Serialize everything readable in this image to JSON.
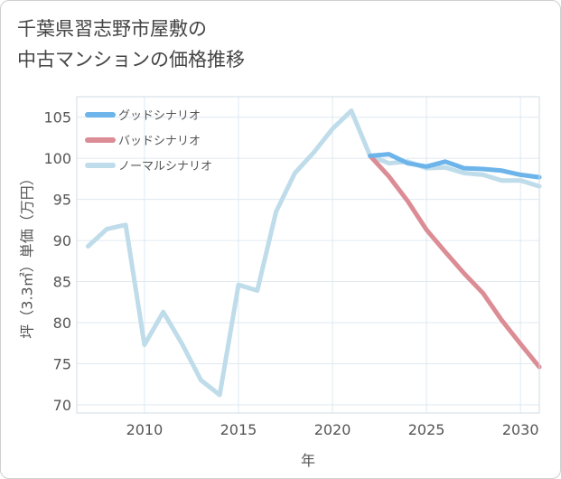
{
  "title_lines": [
    "千葉県習志野市屋敷の",
    "中古マンションの価格推移"
  ],
  "chart_data": {
    "type": "line",
    "xlabel": "年",
    "ylabel": "坪（3.3㎡）単価（万円）",
    "xlim": [
      2006.4,
      2031
    ],
    "ylim": [
      69,
      107.5
    ],
    "xticks": [
      2010,
      2015,
      2020,
      2025,
      2030
    ],
    "yticks": [
      70,
      75,
      80,
      85,
      90,
      95,
      100,
      105
    ],
    "grid": true,
    "legend_position": "top-left",
    "series": [
      {
        "name": "グッドシナリオ",
        "color": "#6cb4ea",
        "x": [
          2022,
          2023,
          2024,
          2025,
          2026,
          2027,
          2028,
          2029,
          2030,
          2031
        ],
        "y": [
          100.3,
          100.5,
          99.4,
          99.0,
          99.6,
          98.8,
          98.7,
          98.5,
          98.0,
          97.7
        ]
      },
      {
        "name": "バッドシナリオ",
        "color": "#dc8c94",
        "x": [
          2022,
          2023,
          2024,
          2025,
          2026,
          2027,
          2028,
          2029,
          2030,
          2031
        ],
        "y": [
          100.3,
          97.8,
          94.8,
          91.3,
          88.6,
          86.0,
          83.6,
          80.3,
          77.4,
          74.6
        ]
      },
      {
        "name": "ノーマルシナリオ",
        "color": "#bfdcea",
        "x": [
          2007,
          2008,
          2009,
          2010,
          2011,
          2012,
          2013,
          2014,
          2015,
          2016,
          2017,
          2018,
          2019,
          2020,
          2021,
          2022,
          2023,
          2024,
          2025,
          2026,
          2027,
          2028,
          2029,
          2030,
          2031
        ],
        "y": [
          89.3,
          91.4,
          91.9,
          77.3,
          81.3,
          77.4,
          73.0,
          71.2,
          84.6,
          83.9,
          93.5,
          98.2,
          100.7,
          103.6,
          105.8,
          100.3,
          99.4,
          99.6,
          98.8,
          98.9,
          98.2,
          98.0,
          97.3,
          97.3,
          96.6
        ]
      }
    ]
  }
}
